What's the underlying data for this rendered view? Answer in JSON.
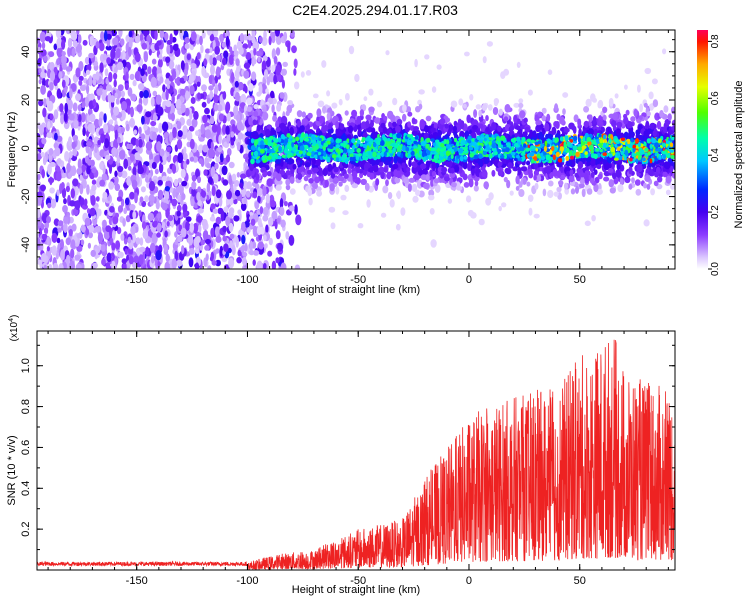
{
  "title": "C2E4.2025.294.01.17.R03",
  "colors": {
    "snr_line": "#ee2222",
    "axis": "#000000"
  },
  "chart_data": [
    {
      "type": "heatmap",
      "xlabel": "Height of straight line (km)",
      "ylabel": "Frequency (Hz)",
      "xlim": [
        -195,
        93
      ],
      "ylim": [
        -50,
        49
      ],
      "x_ticks": [
        "-150",
        "-100",
        "-50",
        "0",
        "50"
      ],
      "y_ticks": [
        "-40",
        "-20",
        "0",
        "20",
        "40"
      ],
      "colorbar": {
        "label": "Normalized spectral amplitude",
        "range": [
          0,
          0.84
        ],
        "ticks": [
          "0.0",
          "0.2",
          "0.4",
          "0.6",
          "0.8"
        ]
      },
      "description_points": [
        {
          "region": "noise",
          "x_range": [
            -195,
            -85
          ],
          "amplitude": 0.1
        },
        {
          "region": "signal_band",
          "x_range": [
            -100,
            93
          ],
          "y_center": 0,
          "y_halfwidth": 8,
          "peak_amplitude": 0.84
        }
      ]
    },
    {
      "type": "line",
      "xlabel": "Height of straight line (km)",
      "ylabel": "SNR (10 * v/v)",
      "y_scale_label": "(x10",
      "y_scale_exponent": "4",
      "y_scale_suffix": ")",
      "xlim": [
        -195,
        93
      ],
      "ylim": [
        0,
        1.17
      ],
      "x_ticks": [
        "-150",
        "-100",
        "-50",
        "0",
        "50"
      ],
      "y_ticks": [
        "0.2",
        "0.4",
        "0.6",
        "0.8",
        "1.0"
      ],
      "envelope": {
        "x": [
          -195,
          -100,
          -85,
          -70,
          -50,
          -30,
          -20,
          -10,
          0,
          10,
          20,
          30,
          40,
          50,
          60,
          65,
          70,
          80,
          93
        ],
        "y": [
          0.03,
          0.04,
          0.08,
          0.1,
          0.2,
          0.25,
          0.45,
          0.6,
          0.75,
          0.82,
          0.85,
          0.88,
          0.9,
          1.05,
          1.12,
          1.17,
          1.0,
          0.92,
          0.88
        ]
      }
    }
  ]
}
